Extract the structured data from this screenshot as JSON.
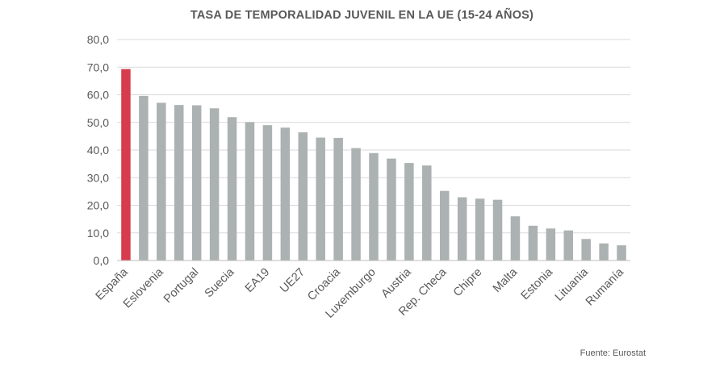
{
  "chart_data": {
    "type": "bar",
    "title": "TASA DE TEMPORALIDAD JUVENIL EN LA UE (15-24 AÑOS)",
    "xlabel": "",
    "ylabel": "",
    "ylim": [
      0,
      80
    ],
    "yticks": [
      "0,0",
      "10,0",
      "20,0",
      "30,0",
      "40,0",
      "50,0",
      "60,0",
      "70,0",
      "80,0"
    ],
    "grid": true,
    "categories": [
      "España",
      "",
      "Eslovenia",
      "",
      "Portugal",
      "",
      "Suecia",
      "",
      "EA19",
      "",
      "UE27",
      "",
      "Croacia",
      "",
      "Luxemburgo",
      "",
      "Austria",
      "",
      "Rep. Checa",
      "",
      "Chipre",
      "",
      "Malta",
      "",
      "Estonia",
      "",
      "Lituania",
      "",
      "Rumanía"
    ],
    "values": [
      69.3,
      59.6,
      57.1,
      56.3,
      56.2,
      55.1,
      51.9,
      50.1,
      49.0,
      48.1,
      46.4,
      44.5,
      44.4,
      40.7,
      38.9,
      36.9,
      35.3,
      34.4,
      25.2,
      22.9,
      22.4,
      22.0,
      16.0,
      12.6,
      11.6,
      10.9,
      7.8,
      6.2,
      5.5
    ],
    "highlight_index": 0,
    "colors": {
      "bar": "#abb2b1",
      "highlight": "#d63c4c",
      "grid": "#d9d9d9",
      "axis_text": "#595959"
    }
  },
  "footer": {
    "source": "Fuente: Eurostat"
  }
}
